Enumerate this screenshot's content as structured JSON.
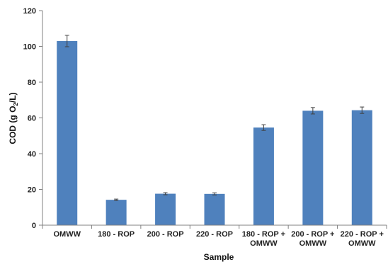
{
  "chart_data": {
    "type": "bar",
    "categories": [
      [
        "OMWW"
      ],
      [
        "180 - ROP"
      ],
      [
        "200 - ROP"
      ],
      [
        "220 - ROP"
      ],
      [
        "180 - ROP +",
        "OMWW"
      ],
      [
        "200 - ROP +",
        "OMWW"
      ],
      [
        "220 - ROP +",
        "OMWW"
      ]
    ],
    "values": [
      103,
      14.2,
      17.6,
      17.5,
      54.6,
      64.0,
      64.3
    ],
    "errors": [
      3.2,
      0.4,
      0.6,
      0.6,
      1.6,
      1.8,
      1.8
    ],
    "xlabel": "Sample",
    "ylabel_prefix": "COD (g O",
    "ylabel_sub": "2",
    "ylabel_suffix": "/L)",
    "ylim": [
      0,
      120
    ],
    "yticks": [
      0,
      20,
      40,
      60,
      80,
      100,
      120
    ],
    "grid": false,
    "legend": "none",
    "colors": {
      "bar": "#4F81BD",
      "error": "#404040",
      "axis": "#808080"
    }
  }
}
